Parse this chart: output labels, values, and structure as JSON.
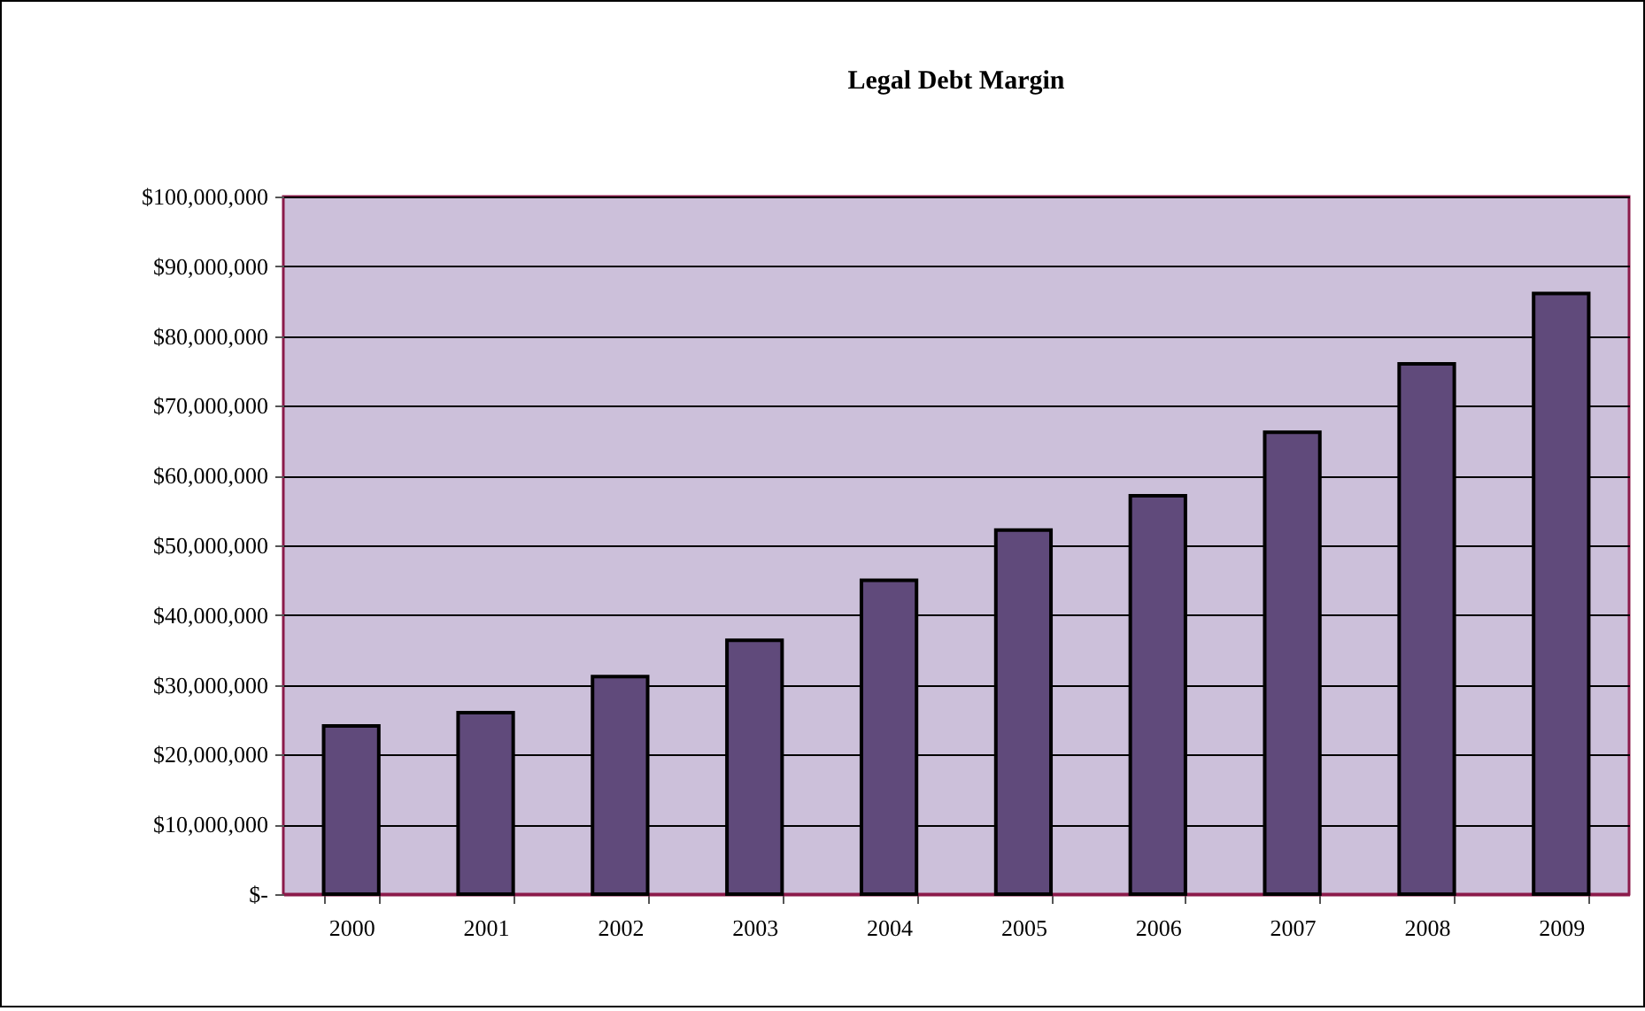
{
  "chart_data": {
    "type": "bar",
    "title": "Legal Debt Margin",
    "categories": [
      "2000",
      "2001",
      "2002",
      "2003",
      "2004",
      "2005",
      "2006",
      "2007",
      "2008",
      "2009"
    ],
    "values": [
      24100000,
      26000000,
      31200000,
      36400000,
      45000000,
      52200000,
      57100000,
      66200000,
      76000000,
      86100000
    ],
    "color": "#604a7b",
    "ylim": [
      0,
      100000000
    ],
    "yticks": [
      {
        "value": 0,
        "label": "$-"
      },
      {
        "value": 10000000,
        "label": "$10,000,000"
      },
      {
        "value": 20000000,
        "label": "$20,000,000"
      },
      {
        "value": 30000000,
        "label": "$30,000,000"
      },
      {
        "value": 40000000,
        "label": "$40,000,000"
      },
      {
        "value": 50000000,
        "label": "$50,000,000"
      },
      {
        "value": 60000000,
        "label": "$60,000,000"
      },
      {
        "value": 70000000,
        "label": "$70,000,000"
      },
      {
        "value": 80000000,
        "label": "$80,000,000"
      },
      {
        "value": 90000000,
        "label": "$90,000,000"
      },
      {
        "value": 100000000,
        "label": "$100,000,000"
      }
    ],
    "grid": "y"
  }
}
